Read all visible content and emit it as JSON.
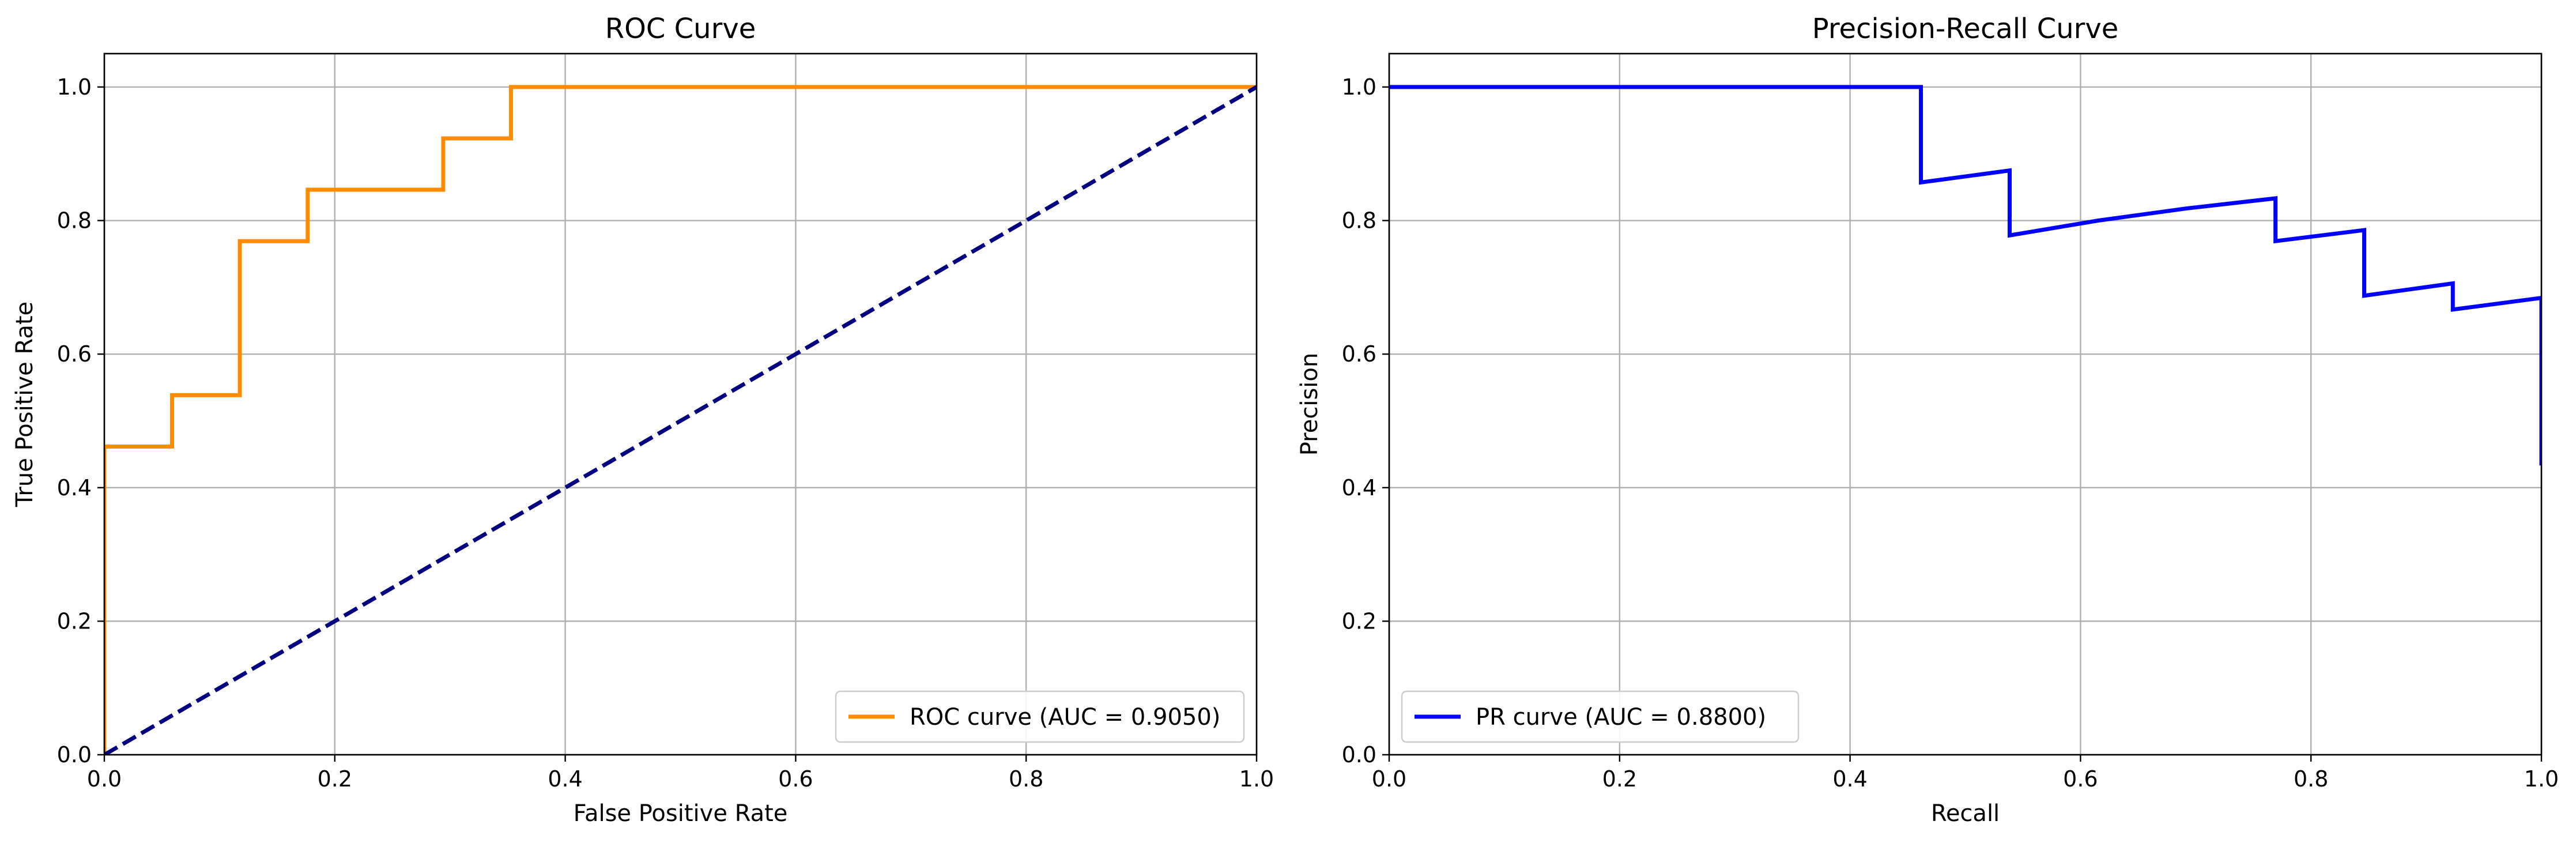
{
  "chart_data": [
    {
      "type": "line",
      "title": "ROC Curve",
      "xlabel": "False Positive Rate",
      "ylabel": "True Positive Rate",
      "xlim": [
        0,
        1
      ],
      "ylim": [
        0,
        1.05
      ],
      "xticks": [
        "0.0",
        "0.2",
        "0.4",
        "0.6",
        "0.8",
        "1.0"
      ],
      "yticks": [
        "0.0",
        "0.2",
        "0.4",
        "0.6",
        "0.8",
        "1.0"
      ],
      "grid": true,
      "legend_position": "lower-right",
      "series": [
        {
          "name": "ROC curve (AUC = 0.9050)",
          "color": "#ff8c00",
          "style": "solid",
          "x": [
            0.0,
            0.0,
            0.0588,
            0.0588,
            0.1176,
            0.1176,
            0.1765,
            0.1765,
            0.2941,
            0.2941,
            0.3529,
            0.3529,
            1.0
          ],
          "y": [
            0.0,
            0.4615,
            0.4615,
            0.5385,
            0.5385,
            0.7692,
            0.7692,
            0.8462,
            0.8462,
            0.9231,
            0.9231,
            1.0,
            1.0
          ]
        },
        {
          "name": "",
          "color": "#000080",
          "style": "dashed",
          "x": [
            0.0,
            1.0
          ],
          "y": [
            0.0,
            1.0
          ]
        }
      ]
    },
    {
      "type": "line",
      "title": "Precision-Recall Curve",
      "xlabel": "Recall",
      "ylabel": "Precision",
      "xlim": [
        0,
        1
      ],
      "ylim": [
        0,
        1.05
      ],
      "xticks": [
        "0.0",
        "0.2",
        "0.4",
        "0.6",
        "0.8",
        "1.0"
      ],
      "yticks": [
        "0.0",
        "0.2",
        "0.4",
        "0.6",
        "0.8",
        "1.0"
      ],
      "grid": true,
      "legend_position": "lower-left",
      "series": [
        {
          "name": "PR curve (AUC = 0.8800)",
          "color": "#0000ff",
          "style": "solid",
          "x": [
            0.0,
            0.4615,
            0.4615,
            0.5385,
            0.5385,
            0.6154,
            0.6923,
            0.7692,
            0.7692,
            0.8462,
            0.8462,
            0.9231,
            0.9231,
            1.0,
            1.0
          ],
          "y": [
            1.0,
            1.0,
            0.8571,
            0.875,
            0.7778,
            0.8,
            0.8182,
            0.8333,
            0.7692,
            0.7857,
            0.6875,
            0.7059,
            0.6667,
            0.6842,
            0.4333
          ]
        }
      ]
    }
  ]
}
